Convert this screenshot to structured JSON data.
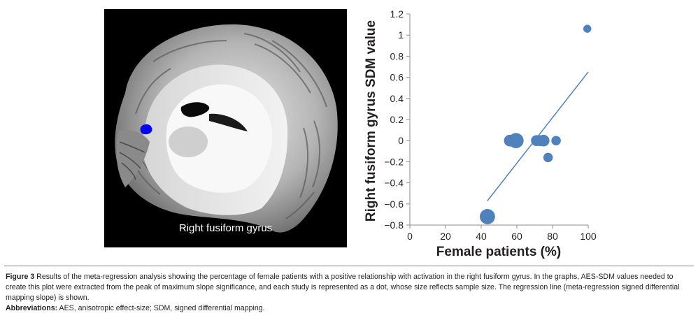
{
  "brain_panel": {
    "label": "Right fusiform gyrus",
    "highlight_color": "#0000ff"
  },
  "chart_data": {
    "type": "scatter",
    "xlabel": "Female patients (%)",
    "ylabel": "Right fusiform gyrus SDM value",
    "xlim": [
      0,
      100
    ],
    "ylim": [
      -0.8,
      1.2
    ],
    "x_ticks": [
      0,
      20,
      40,
      60,
      80,
      100
    ],
    "y_ticks": [
      -0.8,
      -0.6,
      -0.4,
      -0.2,
      0,
      0.2,
      0.4,
      0.6,
      0.8,
      1,
      1.2
    ],
    "y_tick_labels": [
      "−0.8",
      "−0.6",
      "−0.4",
      "−0.2",
      "0",
      "0.2",
      "0.4",
      "0.6",
      "0.8",
      "1",
      "1.2"
    ],
    "grid": false,
    "marker_color": "#4f81bd",
    "line_color": "#4f81bd",
    "points": [
      {
        "x": 43.5,
        "y": -0.72,
        "size": 2.1
      },
      {
        "x": 56,
        "y": 0,
        "size": 1.6
      },
      {
        "x": 59.5,
        "y": 0,
        "size": 2.1
      },
      {
        "x": 71,
        "y": 0,
        "size": 1.5
      },
      {
        "x": 73,
        "y": 0,
        "size": 1.5
      },
      {
        "x": 75,
        "y": 0,
        "size": 1.6
      },
      {
        "x": 77.5,
        "y": -0.16,
        "size": 1.3
      },
      {
        "x": 82,
        "y": 0,
        "size": 1.3
      },
      {
        "x": 99.5,
        "y": 1.06,
        "size": 1.1
      }
    ],
    "regression_line": {
      "x": [
        43.5,
        100
      ],
      "y": [
        -0.57,
        0.65
      ]
    }
  },
  "caption": {
    "label": "Figure 3",
    "text": " Results of the meta-regression analysis showing the percentage of female patients with a positive relationship with activation in the right fusiform gyrus. In the graphs, AES-SDM values needed to create this plot were extracted from the peak of maximum slope significance, and each study is represented as a dot, whose size reflects sample size. The regression line (meta-regression signed differential mapping slope) is shown.",
    "abbrev_label": "Abbreviations:",
    "abbrev_text": " AES, anisotropic effect-size; SDM, signed differential mapping."
  }
}
